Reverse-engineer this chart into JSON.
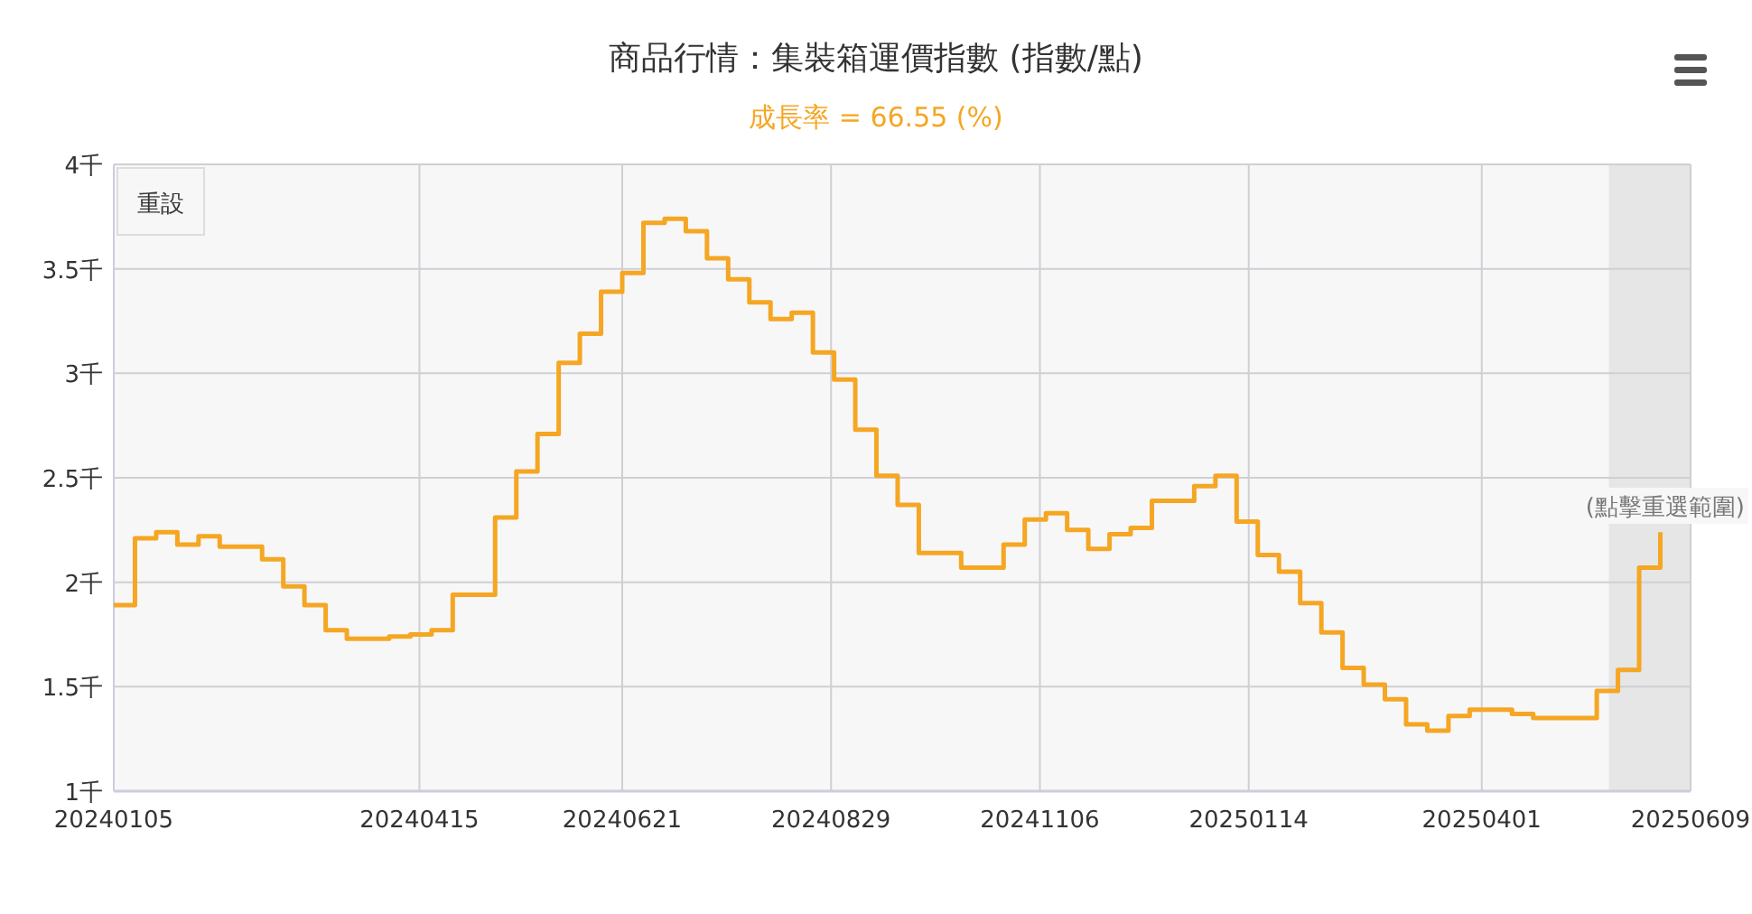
{
  "chart_data": {
    "type": "step",
    "title": "商品行情：集裝箱運價指數 (指數/點)",
    "subtitle": "成長率 = 66.55 (%)",
    "x": [
      "2024-01-05",
      "2024-01-12",
      "2024-01-19",
      "2024-01-26",
      "2024-02-02",
      "2024-02-09",
      "2024-02-16",
      "2024-02-23",
      "2024-03-01",
      "2024-03-08",
      "2024-03-15",
      "2024-03-22",
      "2024-03-29",
      "2024-04-05",
      "2024-04-12",
      "2024-04-19",
      "2024-04-26",
      "2024-05-03",
      "2024-05-10",
      "2024-05-17",
      "2024-05-24",
      "2024-05-31",
      "2024-06-07",
      "2024-06-14",
      "2024-06-21",
      "2024-06-28",
      "2024-07-05",
      "2024-07-12",
      "2024-07-19",
      "2024-07-26",
      "2024-08-02",
      "2024-08-09",
      "2024-08-16",
      "2024-08-23",
      "2024-08-30",
      "2024-09-06",
      "2024-09-13",
      "2024-09-20",
      "2024-09-27",
      "2024-10-04",
      "2024-10-11",
      "2024-10-18",
      "2024-10-25",
      "2024-11-01",
      "2024-11-08",
      "2024-11-15",
      "2024-11-22",
      "2024-11-29",
      "2024-12-06",
      "2024-12-13",
      "2024-12-20",
      "2024-12-27",
      "2025-01-03",
      "2025-01-10",
      "2025-01-17",
      "2025-01-24",
      "2025-01-31",
      "2025-02-07",
      "2025-02-14",
      "2025-02-21",
      "2025-02-28",
      "2025-03-07",
      "2025-03-14",
      "2025-03-21",
      "2025-03-28",
      "2025-04-04",
      "2025-04-11",
      "2025-04-18",
      "2025-04-25",
      "2025-05-02",
      "2025-05-09",
      "2025-05-16",
      "2025-05-23",
      "2025-05-30"
    ],
    "series": [
      {
        "color": "#f5a623",
        "values": [
          1.89,
          2.21,
          2.24,
          2.18,
          2.22,
          2.17,
          2.17,
          2.11,
          1.98,
          1.89,
          1.77,
          1.73,
          1.73,
          1.74,
          1.75,
          1.77,
          1.94,
          1.94,
          2.31,
          2.53,
          2.71,
          3.05,
          3.19,
          3.39,
          3.48,
          3.72,
          3.74,
          3.68,
          3.55,
          3.45,
          3.34,
          3.26,
          3.29,
          3.1,
          2.97,
          2.73,
          2.51,
          2.37,
          2.14,
          2.14,
          2.07,
          2.07,
          2.18,
          2.3,
          2.33,
          2.25,
          2.16,
          2.23,
          2.26,
          2.39,
          2.39,
          2.46,
          2.51,
          2.29,
          2.13,
          2.05,
          1.9,
          1.76,
          1.59,
          1.51,
          1.44,
          1.32,
          1.29,
          1.36,
          1.39,
          1.39,
          1.37,
          1.35,
          1.35,
          1.35,
          1.48,
          1.58,
          2.07,
          2.24
        ]
      }
    ],
    "xlim": [
      "2024-01-05",
      "2025-06-09"
    ],
    "xticks": [
      {
        "value": "2024-01-05",
        "label": "20240105"
      },
      {
        "value": "2024-04-15",
        "label": "20240415"
      },
      {
        "value": "2024-06-21",
        "label": "20240621"
      },
      {
        "value": "2024-08-29",
        "label": "20240829"
      },
      {
        "value": "2024-11-06",
        "label": "20241106"
      },
      {
        "value": "2025-01-14",
        "label": "20250114"
      },
      {
        "value": "2025-04-01",
        "label": "20250401"
      },
      {
        "value": "2025-06-09",
        "label": "20250609"
      }
    ],
    "ylim": [
      1,
      4
    ],
    "yticks": [
      {
        "value": 1,
        "label": "1千"
      },
      {
        "value": 1.5,
        "label": "1.5千"
      },
      {
        "value": 2,
        "label": "2千"
      },
      {
        "value": 2.5,
        "label": "2.5千"
      },
      {
        "value": 3,
        "label": "3千"
      },
      {
        "value": 3.5,
        "label": "3.5千"
      },
      {
        "value": 4,
        "label": "4千"
      }
    ],
    "grid": true,
    "bands": [
      {
        "axis": "x",
        "from": "2025-05-13",
        "to": "2025-06-09",
        "color": "#e6e6e6"
      }
    ],
    "annotations": [
      "重設",
      "(點擊重選範圍)"
    ]
  }
}
